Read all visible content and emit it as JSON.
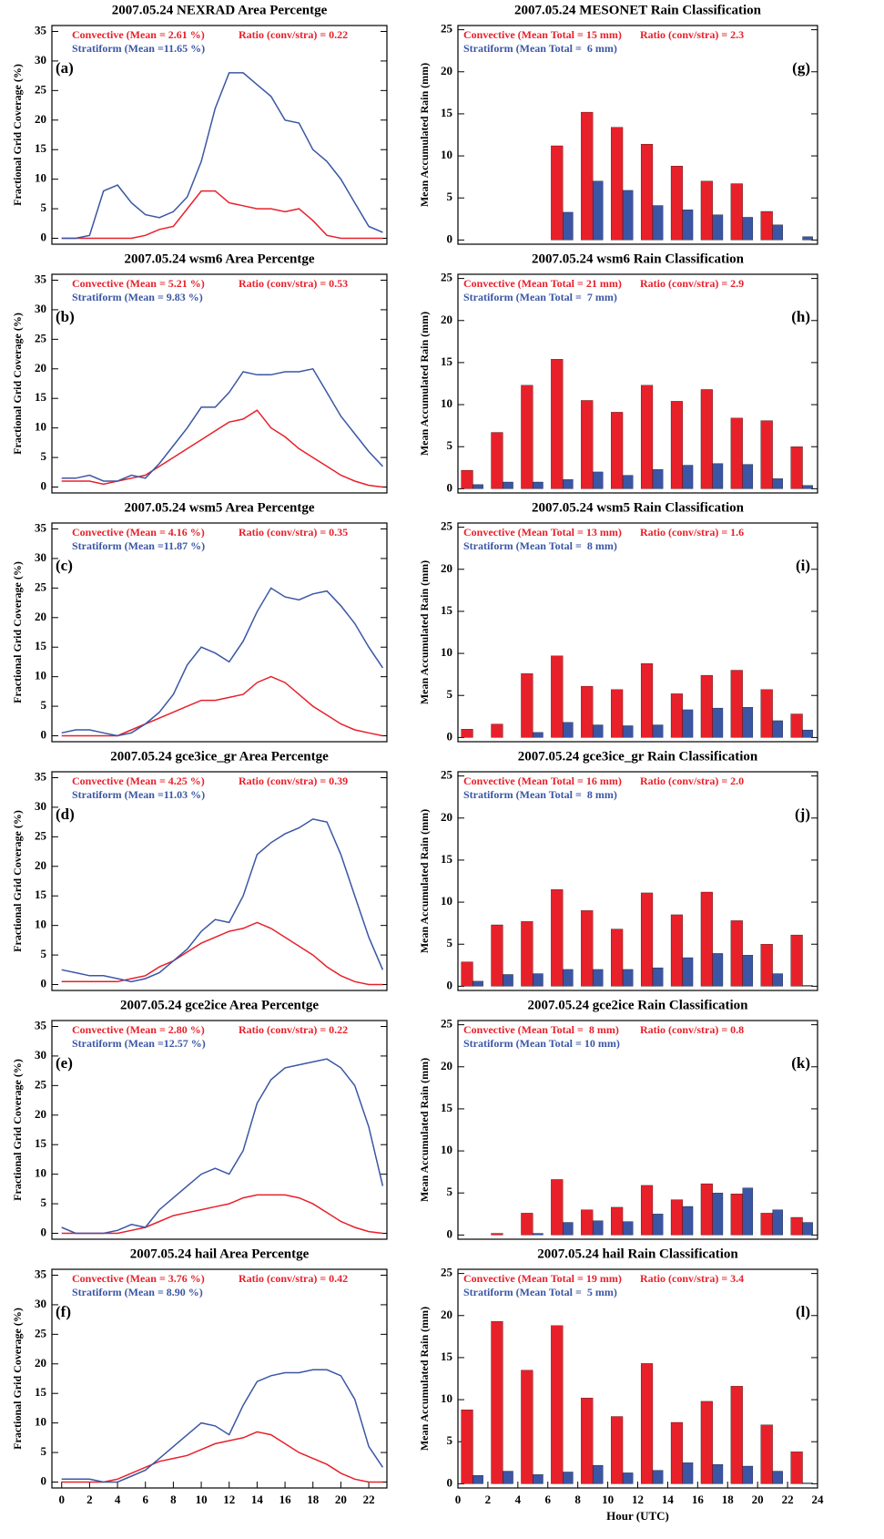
{
  "chart_data": [
    {
      "type": "line",
      "title": "2007.05.24 NEXRAD Area Percentge",
      "panel_label": "(a)",
      "ylabel": "Fractional Grid Coverage (%)",
      "legend_text": {
        "convective": "Convective (Mean = 2.61 %)",
        "ratio": "Ratio (conv/stra) = 0.22",
        "stratiform": "Stratiform (Mean =11.65 %)"
      },
      "x": [
        0,
        1,
        2,
        3,
        4,
        5,
        6,
        7,
        8,
        9,
        10,
        11,
        12,
        13,
        14,
        15,
        16,
        17,
        18,
        19,
        20,
        21,
        22,
        23
      ],
      "xlim": [
        -0.7,
        23.3
      ],
      "ylim": [
        -1,
        36
      ],
      "yticks": [
        0,
        5,
        10,
        15,
        20,
        25,
        30,
        35
      ],
      "series": [
        {
          "color": "#e8202a",
          "values": [
            0,
            0,
            0,
            0,
            0,
            0,
            0.5,
            1.5,
            2,
            5,
            8,
            8,
            6,
            5.5,
            5,
            5,
            4.5,
            5,
            3,
            0.5,
            0,
            0,
            0,
            0
          ]
        },
        {
          "color": "#3a56a5",
          "values": [
            0,
            0,
            0.5,
            8,
            9,
            6,
            4,
            3.5,
            4.5,
            7,
            13,
            22,
            28,
            28,
            26,
            24,
            20,
            19.5,
            15,
            13,
            10,
            6,
            2,
            1
          ]
        }
      ]
    },
    {
      "type": "line",
      "title": "2007.05.24 wsm6 Area Percentge",
      "panel_label": "(b)",
      "ylabel": "Fractional Grid Coverage (%)",
      "legend_text": {
        "convective": "Convective (Mean = 5.21 %)",
        "ratio": "Ratio (conv/stra) = 0.53",
        "stratiform": "Stratiform (Mean = 9.83 %)"
      },
      "x": [
        0,
        1,
        2,
        3,
        4,
        5,
        6,
        7,
        8,
        9,
        10,
        11,
        12,
        13,
        14,
        15,
        16,
        17,
        18,
        19,
        20,
        21,
        22,
        23
      ],
      "xlim": [
        -0.7,
        23.3
      ],
      "ylim": [
        -1,
        36
      ],
      "yticks": [
        0,
        5,
        10,
        15,
        20,
        25,
        30,
        35
      ],
      "series": [
        {
          "color": "#e8202a",
          "values": [
            1,
            1,
            1,
            0.5,
            1,
            1.5,
            2,
            3.5,
            5,
            6.5,
            8,
            9.5,
            11,
            11.5,
            13,
            10,
            8.5,
            6.5,
            5,
            3.5,
            2,
            1,
            0.3,
            0
          ]
        },
        {
          "color": "#3a56a5",
          "values": [
            1.5,
            1.5,
            2,
            1,
            1,
            2,
            1.5,
            4,
            7,
            10,
            13.5,
            13.5,
            16,
            19.5,
            19,
            19,
            19.5,
            19.5,
            20,
            16,
            12,
            9,
            6,
            3.5
          ]
        }
      ]
    },
    {
      "type": "line",
      "title": "2007.05.24 wsm5 Area Percentge",
      "panel_label": "(c)",
      "ylabel": "Fractional Grid Coverage (%)",
      "legend_text": {
        "convective": "Convective (Mean = 4.16 %)",
        "ratio": "Ratio (conv/stra) = 0.35",
        "stratiform": "Stratiform (Mean =11.87 %)"
      },
      "x": [
        0,
        1,
        2,
        3,
        4,
        5,
        6,
        7,
        8,
        9,
        10,
        11,
        12,
        13,
        14,
        15,
        16,
        17,
        18,
        19,
        20,
        21,
        22,
        23
      ],
      "xlim": [
        -0.7,
        23.3
      ],
      "ylim": [
        -1,
        36
      ],
      "yticks": [
        0,
        5,
        10,
        15,
        20,
        25,
        30,
        35
      ],
      "series": [
        {
          "color": "#e8202a",
          "values": [
            0,
            0,
            0,
            0,
            0,
            1,
            2,
            3,
            4,
            5,
            6,
            6,
            6.5,
            7,
            9,
            10,
            9,
            7,
            5,
            3.5,
            2,
            1,
            0.5,
            0
          ]
        },
        {
          "color": "#3a56a5",
          "values": [
            0.5,
            1,
            1,
            0.5,
            0,
            0.5,
            2,
            4,
            7,
            12,
            15,
            14,
            12.5,
            16,
            21,
            25,
            23.5,
            23,
            24,
            24.5,
            22,
            19,
            15,
            11.5
          ]
        }
      ]
    },
    {
      "type": "line",
      "title": "2007.05.24 gce3ice_gr Area Percentge",
      "panel_label": "(d)",
      "ylabel": "Fractional Grid Coverage (%)",
      "legend_text": {
        "convective": "Convective (Mean = 4.25 %)",
        "ratio": "Ratio (conv/stra) = 0.39",
        "stratiform": "Stratiform (Mean =11.03 %)"
      },
      "x": [
        0,
        1,
        2,
        3,
        4,
        5,
        6,
        7,
        8,
        9,
        10,
        11,
        12,
        13,
        14,
        15,
        16,
        17,
        18,
        19,
        20,
        21,
        22,
        23
      ],
      "xlim": [
        -0.7,
        23.3
      ],
      "ylim": [
        -1,
        36
      ],
      "yticks": [
        0,
        5,
        10,
        15,
        20,
        25,
        30,
        35
      ],
      "series": [
        {
          "color": "#e8202a",
          "values": [
            0.5,
            0.5,
            0.5,
            0.5,
            0.5,
            1,
            1.5,
            3,
            4,
            5.5,
            7,
            8,
            9,
            9.5,
            10.5,
            9.5,
            8,
            6.5,
            5,
            3,
            1.5,
            0.5,
            0,
            0
          ]
        },
        {
          "color": "#3a56a5",
          "values": [
            2.5,
            2,
            1.5,
            1.5,
            1,
            0.5,
            1,
            2,
            4,
            6,
            9,
            11,
            10.5,
            15,
            22,
            24,
            25.5,
            26.5,
            28,
            27.5,
            22,
            15,
            8,
            2.5
          ]
        }
      ]
    },
    {
      "type": "line",
      "title": "2007.05.24 gce2ice Area Percentge",
      "panel_label": "(e)",
      "ylabel": "Fractional Grid Coverage (%)",
      "legend_text": {
        "convective": "Convective (Mean = 2.80 %)",
        "ratio": "Ratio (conv/stra) = 0.22",
        "stratiform": "Stratiform (Mean =12.57 %)"
      },
      "x": [
        0,
        1,
        2,
        3,
        4,
        5,
        6,
        7,
        8,
        9,
        10,
        11,
        12,
        13,
        14,
        15,
        16,
        17,
        18,
        19,
        20,
        21,
        22,
        23
      ],
      "xlim": [
        -0.7,
        23.3
      ],
      "ylim": [
        -1,
        36
      ],
      "yticks": [
        0,
        5,
        10,
        15,
        20,
        25,
        30,
        35
      ],
      "series": [
        {
          "color": "#e8202a",
          "values": [
            0,
            0,
            0,
            0,
            0,
            0.5,
            1,
            2,
            3,
            3.5,
            4,
            4.5,
            5,
            6,
            6.5,
            6.5,
            6.5,
            6,
            5,
            3.5,
            2,
            1,
            0.3,
            0
          ]
        },
        {
          "color": "#3a56a5",
          "values": [
            1,
            0,
            0,
            0,
            0.5,
            1.5,
            1,
            4,
            6,
            8,
            10,
            11,
            10,
            14,
            22,
            26,
            28,
            28.5,
            29,
            29.5,
            28,
            25,
            18,
            8
          ]
        }
      ]
    },
    {
      "type": "line",
      "title": "2007.05.24 hail Area Percentge",
      "panel_label": "(f)",
      "ylabel": "Fractional Grid Coverage (%)",
      "legend_text": {
        "convective": "Convective (Mean = 3.76 %)",
        "ratio": "Ratio (conv/stra) = 0.42",
        "stratiform": "Stratiform (Mean = 8.90 %)"
      },
      "x": [
        0,
        1,
        2,
        3,
        4,
        5,
        6,
        7,
        8,
        9,
        10,
        11,
        12,
        13,
        14,
        15,
        16,
        17,
        18,
        19,
        20,
        21,
        22,
        23
      ],
      "xlim": [
        -0.7,
        23.3
      ],
      "ylim": [
        -1,
        36
      ],
      "yticks": [
        0,
        5,
        10,
        15,
        20,
        25,
        30,
        35
      ],
      "xticks": [
        0,
        2,
        4,
        6,
        8,
        10,
        12,
        14,
        16,
        18,
        20,
        22
      ],
      "series": [
        {
          "color": "#e8202a",
          "values": [
            0,
            0,
            0,
            0,
            0.5,
            1.5,
            2.5,
            3.5,
            4,
            4.5,
            5.5,
            6.5,
            7,
            7.5,
            8.5,
            8,
            6.5,
            5,
            4,
            3,
            1.5,
            0.5,
            0,
            0
          ]
        },
        {
          "color": "#3a56a5",
          "values": [
            0.5,
            0.5,
            0.5,
            0,
            0,
            1,
            2,
            4,
            6,
            8,
            10,
            9.5,
            8,
            13,
            17,
            18,
            18.5,
            18.5,
            19,
            19,
            18,
            14,
            6,
            2.5
          ]
        }
      ]
    },
    {
      "type": "bar",
      "title": "2007.05.24 MESONET Rain Classification",
      "panel_label": "(g)",
      "ylabel": "Mean Accumulated Rain (mm)",
      "legend_text": {
        "convective": "Convective (Mean Total = 15 mm)",
        "ratio": "Ratio (conv/stra) = 2.3",
        "stratiform": "Stratiform (Mean Total =  6 mm)"
      },
      "x": [
        1,
        3,
        5,
        7,
        9,
        11,
        13,
        15,
        17,
        19,
        21,
        23
      ],
      "xlim": [
        0,
        24
      ],
      "ylim": [
        -0.5,
        25.5
      ],
      "yticks": [
        0,
        5,
        10,
        15,
        20,
        25
      ],
      "series": [
        {
          "color": "#e8202a",
          "values": [
            0,
            0,
            0,
            11.2,
            15.2,
            13.4,
            11.4,
            8.8,
            7,
            6.7,
            3.4,
            0
          ]
        },
        {
          "color": "#3a56a5",
          "values": [
            0,
            0,
            0,
            3.3,
            7,
            5.9,
            4.1,
            3.6,
            3,
            2.7,
            1.8,
            0.4
          ]
        }
      ]
    },
    {
      "type": "bar",
      "title": "2007.05.24 wsm6 Rain Classification",
      "panel_label": "(h)",
      "ylabel": "Mean Accumulated Rain (mm)",
      "legend_text": {
        "convective": "Convective (Mean Total = 21 mm)",
        "ratio": "Ratio (conv/stra) = 2.9",
        "stratiform": "Stratiform (Mean Total =  7 mm)"
      },
      "x": [
        1,
        3,
        5,
        7,
        9,
        11,
        13,
        15,
        17,
        19,
        21,
        23
      ],
      "xlim": [
        0,
        24
      ],
      "ylim": [
        -0.5,
        25.5
      ],
      "yticks": [
        0,
        5,
        10,
        15,
        20,
        25
      ],
      "series": [
        {
          "color": "#e8202a",
          "values": [
            2.2,
            6.7,
            12.3,
            15.4,
            10.5,
            9.1,
            12.3,
            10.4,
            11.8,
            8.4,
            8.1,
            5
          ]
        },
        {
          "color": "#3a56a5",
          "values": [
            0.5,
            0.8,
            0.8,
            1.1,
            2,
            1.6,
            2.3,
            2.8,
            3,
            2.9,
            1.2,
            0.4
          ]
        }
      ]
    },
    {
      "type": "bar",
      "title": "2007.05.24 wsm5 Rain Classification",
      "panel_label": "(i)",
      "ylabel": "Mean Accumulated Rain (mm)",
      "legend_text": {
        "convective": "Convective (Mean Total = 13 mm)",
        "ratio": "Ratio (conv/stra) = 1.6",
        "stratiform": "Stratiform (Mean Total =  8 mm)"
      },
      "x": [
        1,
        3,
        5,
        7,
        9,
        11,
        13,
        15,
        17,
        19,
        21,
        23
      ],
      "xlim": [
        0,
        24
      ],
      "ylim": [
        -0.5,
        25.5
      ],
      "yticks": [
        0,
        5,
        10,
        15,
        20,
        25
      ],
      "series": [
        {
          "color": "#e8202a",
          "values": [
            1,
            1.6,
            7.6,
            9.7,
            6.1,
            5.7,
            8.8,
            5.2,
            7.4,
            8,
            5.7,
            2.8
          ]
        },
        {
          "color": "#3a56a5",
          "values": [
            0,
            0,
            0.6,
            1.8,
            1.5,
            1.4,
            1.5,
            3.3,
            3.5,
            3.6,
            2,
            0.9
          ]
        }
      ]
    },
    {
      "type": "bar",
      "title": "2007.05.24 gce3ice_gr Rain Classification",
      "panel_label": "(j)",
      "ylabel": "Mean Accumulated Rain (mm)",
      "legend_text": {
        "convective": "Convective (Mean Total = 16 mm)",
        "ratio": "Ratio (conv/stra) = 2.0",
        "stratiform": "Stratiform (Mean Total =  8 mm)"
      },
      "x": [
        1,
        3,
        5,
        7,
        9,
        11,
        13,
        15,
        17,
        19,
        21,
        23
      ],
      "xlim": [
        0,
        24
      ],
      "ylim": [
        -0.5,
        25.5
      ],
      "yticks": [
        0,
        5,
        10,
        15,
        20,
        25
      ],
      "series": [
        {
          "color": "#e8202a",
          "values": [
            2.9,
            7.3,
            7.7,
            11.5,
            9,
            6.8,
            11.1,
            8.5,
            11.2,
            7.8,
            5,
            6.1
          ]
        },
        {
          "color": "#3a56a5",
          "values": [
            0.6,
            1.4,
            1.5,
            2,
            2,
            2,
            2.2,
            3.4,
            3.9,
            3.7,
            1.5,
            0.1
          ]
        }
      ]
    },
    {
      "type": "bar",
      "title": "2007.05.24 gce2ice Rain Classification",
      "panel_label": "(k)",
      "ylabel": "Mean Accumulated Rain (mm)",
      "legend_text": {
        "convective": "Convective (Mean Total =  8 mm)",
        "ratio": "Ratio (conv/stra) = 0.8",
        "stratiform": "Stratiform (Mean Total = 10 mm)"
      },
      "x": [
        1,
        3,
        5,
        7,
        9,
        11,
        13,
        15,
        17,
        19,
        21,
        23
      ],
      "xlim": [
        0,
        24
      ],
      "ylim": [
        -0.5,
        25.5
      ],
      "yticks": [
        0,
        5,
        10,
        15,
        20,
        25
      ],
      "series": [
        {
          "color": "#e8202a",
          "values": [
            0,
            0.2,
            2.6,
            6.6,
            3,
            3.3,
            5.9,
            4.2,
            6.1,
            4.9,
            2.6,
            2.1
          ]
        },
        {
          "color": "#3a56a5",
          "values": [
            0,
            0,
            0.2,
            1.5,
            1.7,
            1.6,
            2.5,
            3.4,
            5,
            5.6,
            3,
            1.5
          ]
        }
      ]
    },
    {
      "type": "bar",
      "title": "2007.05.24 hail Rain Classification",
      "panel_label": "(l)",
      "ylabel": "Mean Accumulated Rain (mm)",
      "xlabel": "Hour (UTC)",
      "legend_text": {
        "convective": "Convective (Mean Total = 19 mm)",
        "ratio": "Ratio (conv/stra) = 3.4",
        "stratiform": "Stratiform (Mean Total =  5 mm)"
      },
      "x": [
        1,
        3,
        5,
        7,
        9,
        11,
        13,
        15,
        17,
        19,
        21,
        23
      ],
      "xlim": [
        0,
        24
      ],
      "ylim": [
        -0.5,
        25.5
      ],
      "yticks": [
        0,
        5,
        10,
        15,
        20,
        25
      ],
      "xticks": [
        0,
        2,
        4,
        6,
        8,
        10,
        12,
        14,
        16,
        18,
        20,
        22,
        24
      ],
      "series": [
        {
          "color": "#e8202a",
          "values": [
            8.8,
            19.3,
            13.5,
            18.8,
            10.2,
            8,
            14.3,
            7.3,
            9.8,
            11.6,
            7,
            3.8
          ]
        },
        {
          "color": "#3a56a5",
          "values": [
            1,
            1.5,
            1.1,
            1.4,
            2.2,
            1.3,
            1.6,
            2.5,
            2.3,
            2.1,
            1.5,
            0.1
          ]
        }
      ]
    }
  ]
}
